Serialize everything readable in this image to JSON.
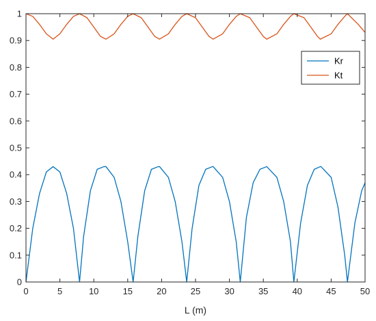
{
  "chart_data": {
    "type": "line",
    "title": "",
    "xlabel": "L (m)",
    "ylabel": "",
    "xlim": [
      0,
      50
    ],
    "ylim": [
      0,
      1
    ],
    "xticks": [
      0,
      5,
      10,
      15,
      20,
      25,
      30,
      35,
      40,
      45,
      50
    ],
    "xtick_labels": [
      "0",
      "5",
      "10",
      "15",
      "20",
      "25",
      "30",
      "35",
      "40",
      "45",
      "50"
    ],
    "yticks": [
      0,
      0.1,
      0.2,
      0.3,
      0.4,
      0.5,
      0.6,
      0.7,
      0.8,
      0.9,
      1
    ],
    "ytick_labels": [
      "0",
      "0.1",
      "0.2",
      "0.3",
      "0.4",
      "0.5",
      "0.6",
      "0.7",
      "0.8",
      "0.9",
      "1"
    ],
    "grid": false,
    "legend_position": "top-right",
    "series": [
      {
        "name": "Kr",
        "color": "#0072BD",
        "x": [
          0,
          1,
          2,
          3,
          4,
          5,
          6,
          7,
          7.9,
          8.5,
          9.5,
          10.5,
          11.5,
          11.8,
          13,
          14,
          15,
          15.8,
          16.5,
          17.5,
          18.5,
          19.5,
          19.7,
          21,
          22,
          23,
          23.7,
          24.5,
          25.5,
          26.5,
          27.5,
          27.6,
          29,
          30,
          31,
          31.6,
          32.5,
          33.5,
          34.5,
          35.5,
          35.5,
          37,
          38,
          39,
          39.5,
          40.5,
          41.5,
          42.5,
          43.4,
          43.5,
          45,
          46,
          47,
          47.4,
          48.5,
          49.5,
          50
        ],
        "y": [
          0,
          0.2,
          0.33,
          0.41,
          0.43,
          0.41,
          0.33,
          0.2,
          0,
          0.17,
          0.34,
          0.42,
          0.43,
          0.43,
          0.39,
          0.3,
          0.15,
          0,
          0.17,
          0.34,
          0.42,
          0.43,
          0.43,
          0.39,
          0.3,
          0.15,
          0,
          0.2,
          0.36,
          0.42,
          0.43,
          0.43,
          0.39,
          0.3,
          0.15,
          0,
          0.24,
          0.37,
          0.42,
          0.43,
          0.43,
          0.39,
          0.3,
          0.15,
          0,
          0.22,
          0.36,
          0.42,
          0.43,
          0.43,
          0.39,
          0.28,
          0.1,
          0,
          0.22,
          0.34,
          0.37
        ]
      },
      {
        "name": "Kt",
        "color": "#D95319",
        "x": [
          0,
          1,
          2,
          3,
          4,
          5,
          6,
          7,
          7.9,
          9,
          10,
          11,
          11.8,
          13,
          14,
          15,
          15.8,
          17,
          18,
          19,
          19.7,
          21,
          22,
          23,
          23.7,
          25,
          26,
          27,
          27.6,
          29,
          30,
          31,
          31.6,
          33,
          34,
          35,
          35.5,
          37,
          38,
          39,
          39.5,
          41,
          42,
          43,
          43.4,
          45,
          46,
          47,
          47.4,
          49,
          50
        ],
        "y": [
          1,
          0.99,
          0.96,
          0.925,
          0.905,
          0.925,
          0.96,
          0.99,
          1,
          0.985,
          0.95,
          0.915,
          0.905,
          0.925,
          0.96,
          0.99,
          1,
          0.985,
          0.95,
          0.915,
          0.905,
          0.925,
          0.96,
          0.99,
          1,
          0.985,
          0.95,
          0.915,
          0.905,
          0.925,
          0.96,
          0.99,
          1,
          0.985,
          0.95,
          0.915,
          0.905,
          0.925,
          0.96,
          0.99,
          1,
          0.985,
          0.95,
          0.915,
          0.905,
          0.925,
          0.96,
          0.99,
          1,
          0.96,
          0.93
        ]
      }
    ]
  }
}
